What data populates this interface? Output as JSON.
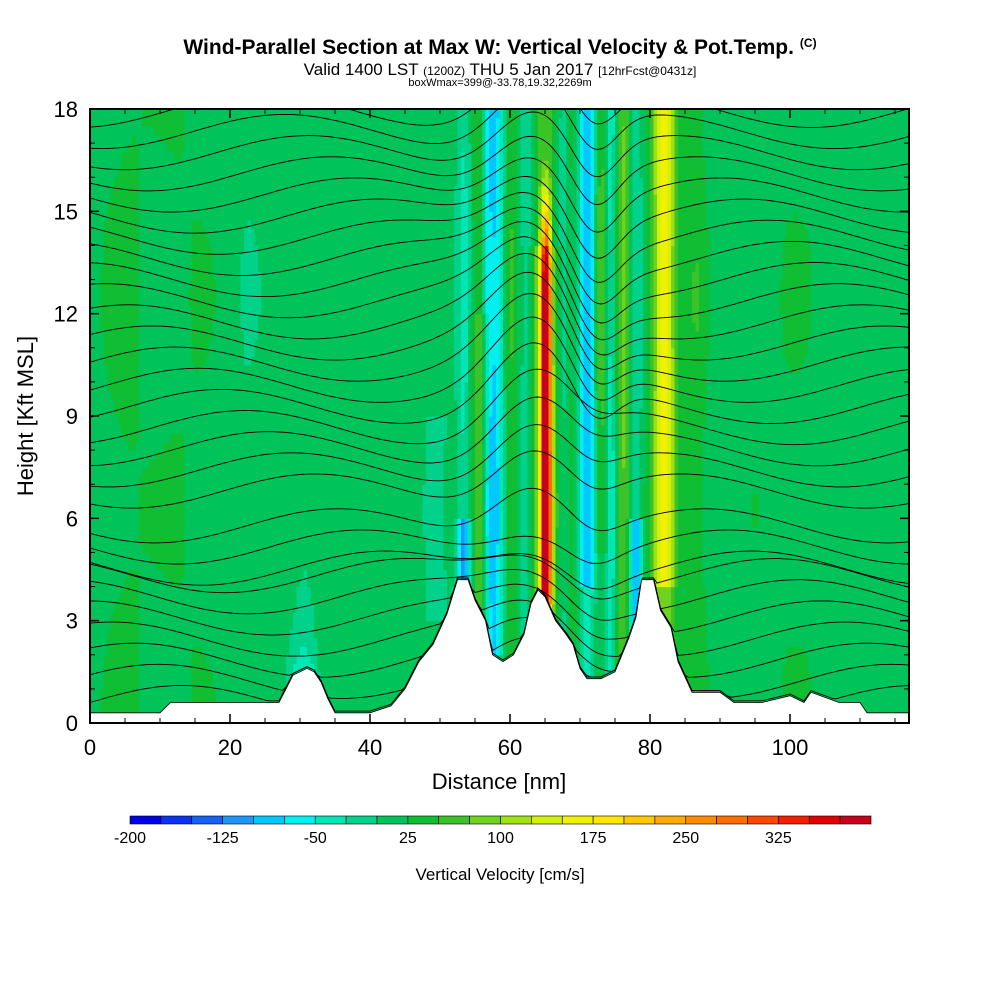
{
  "title": "Wind-Parallel Section at Max W: Vertical Velocity & Pot.Temp.",
  "copyright": "(C)",
  "valid": {
    "prefix": "Valid 1400 LST",
    "utc": "(1200Z)",
    "date": "THU 5 Jan 2017",
    "forecast": "[12hrFcst@0431z]"
  },
  "box_info": "boxWmax=399@-33.78,19.32,2269m",
  "chart_data": {
    "type": "heatmap",
    "xlabel": "Distance [nm]",
    "ylabel": "Height [Kft MSL]",
    "xlim": [
      0,
      117
    ],
    "ylim": [
      0,
      18
    ],
    "xticks": [
      0,
      20,
      40,
      60,
      80,
      100
    ],
    "yticks": [
      0,
      3,
      6,
      9,
      12,
      15,
      18
    ],
    "colorbar": {
      "title": "Vertical Velocity [cm/s]",
      "labels": [
        "-200",
        "-125",
        "-50",
        "25",
        "100",
        "175",
        "250",
        "325"
      ],
      "levels": [
        -200,
        -175,
        -150,
        -125,
        -100,
        -75,
        -50,
        -25,
        0,
        25,
        50,
        75,
        100,
        125,
        150,
        175,
        200,
        225,
        250,
        275,
        300,
        325,
        350,
        375,
        400
      ],
      "colors": [
        "#0000e6",
        "#0a32f0",
        "#1463f5",
        "#1e96fa",
        "#00c8ff",
        "#00f0f0",
        "#00e6b4",
        "#00d28c",
        "#00c35a",
        "#0fbe32",
        "#3cc328",
        "#6ed21e",
        "#a0e114",
        "#d2f00a",
        "#f0f000",
        "#ffe600",
        "#ffc800",
        "#ffaa00",
        "#ff8c00",
        "#ff6e00",
        "#ff4600",
        "#f51e00",
        "#e10000",
        "#c8001e"
      ]
    },
    "terrain_profile": [
      [
        0,
        0.3
      ],
      [
        5,
        0.3
      ],
      [
        10,
        0.3
      ],
      [
        11.5,
        0.6
      ],
      [
        20,
        0.6
      ],
      [
        27,
        0.6
      ],
      [
        28,
        1.0
      ],
      [
        29,
        1.4
      ],
      [
        30,
        1.5
      ],
      [
        31,
        1.6
      ],
      [
        32,
        1.5
      ],
      [
        33,
        1.2
      ],
      [
        34,
        0.7
      ],
      [
        35,
        0.3
      ],
      [
        40,
        0.3
      ],
      [
        43,
        0.5
      ],
      [
        45,
        1.0
      ],
      [
        47,
        1.8
      ],
      [
        49,
        2.3
      ],
      [
        51,
        3.2
      ],
      [
        52.5,
        4.2
      ],
      [
        54,
        4.2
      ],
      [
        55,
        3.6
      ],
      [
        56.5,
        3.0
      ],
      [
        57.5,
        2.0
      ],
      [
        59,
        1.8
      ],
      [
        60.5,
        2.0
      ],
      [
        62,
        2.6
      ],
      [
        63,
        3.5
      ],
      [
        64,
        3.9
      ],
      [
        65,
        3.7
      ],
      [
        66.5,
        3.0
      ],
      [
        68,
        2.6
      ],
      [
        69,
        2.3
      ],
      [
        70,
        1.6
      ],
      [
        71,
        1.3
      ],
      [
        73,
        1.3
      ],
      [
        75,
        1.5
      ],
      [
        76,
        2.0
      ],
      [
        77,
        2.5
      ],
      [
        78,
        3.1
      ],
      [
        78.8,
        4.2
      ],
      [
        80.5,
        4.2
      ],
      [
        81.5,
        3.3
      ],
      [
        83,
        2.8
      ],
      [
        84,
        1.8
      ],
      [
        86,
        0.9
      ],
      [
        90,
        0.9
      ],
      [
        92,
        0.6
      ],
      [
        96,
        0.6
      ],
      [
        100,
        0.8
      ],
      [
        102,
        0.6
      ],
      [
        103,
        0.9
      ],
      [
        107,
        0.6
      ],
      [
        110,
        0.6
      ],
      [
        111,
        0.3
      ],
      [
        117,
        0.3
      ]
    ],
    "updraft_columns": [
      {
        "x": 30.5,
        "w_cm_s": -90,
        "z_top": 3.0
      },
      {
        "x": 53.5,
        "w_cm_s": -130,
        "z_top": 5.0
      },
      {
        "x": 58,
        "w_cm_s": -80,
        "z_top": 16
      },
      {
        "x": 65,
        "w_cm_s": 399,
        "z_top": 12
      },
      {
        "x": 71,
        "w_cm_s": -110,
        "z_top": 17
      },
      {
        "x": 74,
        "w_cm_s": -60,
        "z_top": 15
      },
      {
        "x": 78,
        "w_cm_s": -110,
        "z_top": 5.5
      },
      {
        "x": 82,
        "w_cm_s": 160,
        "z_top": 18
      }
    ]
  }
}
